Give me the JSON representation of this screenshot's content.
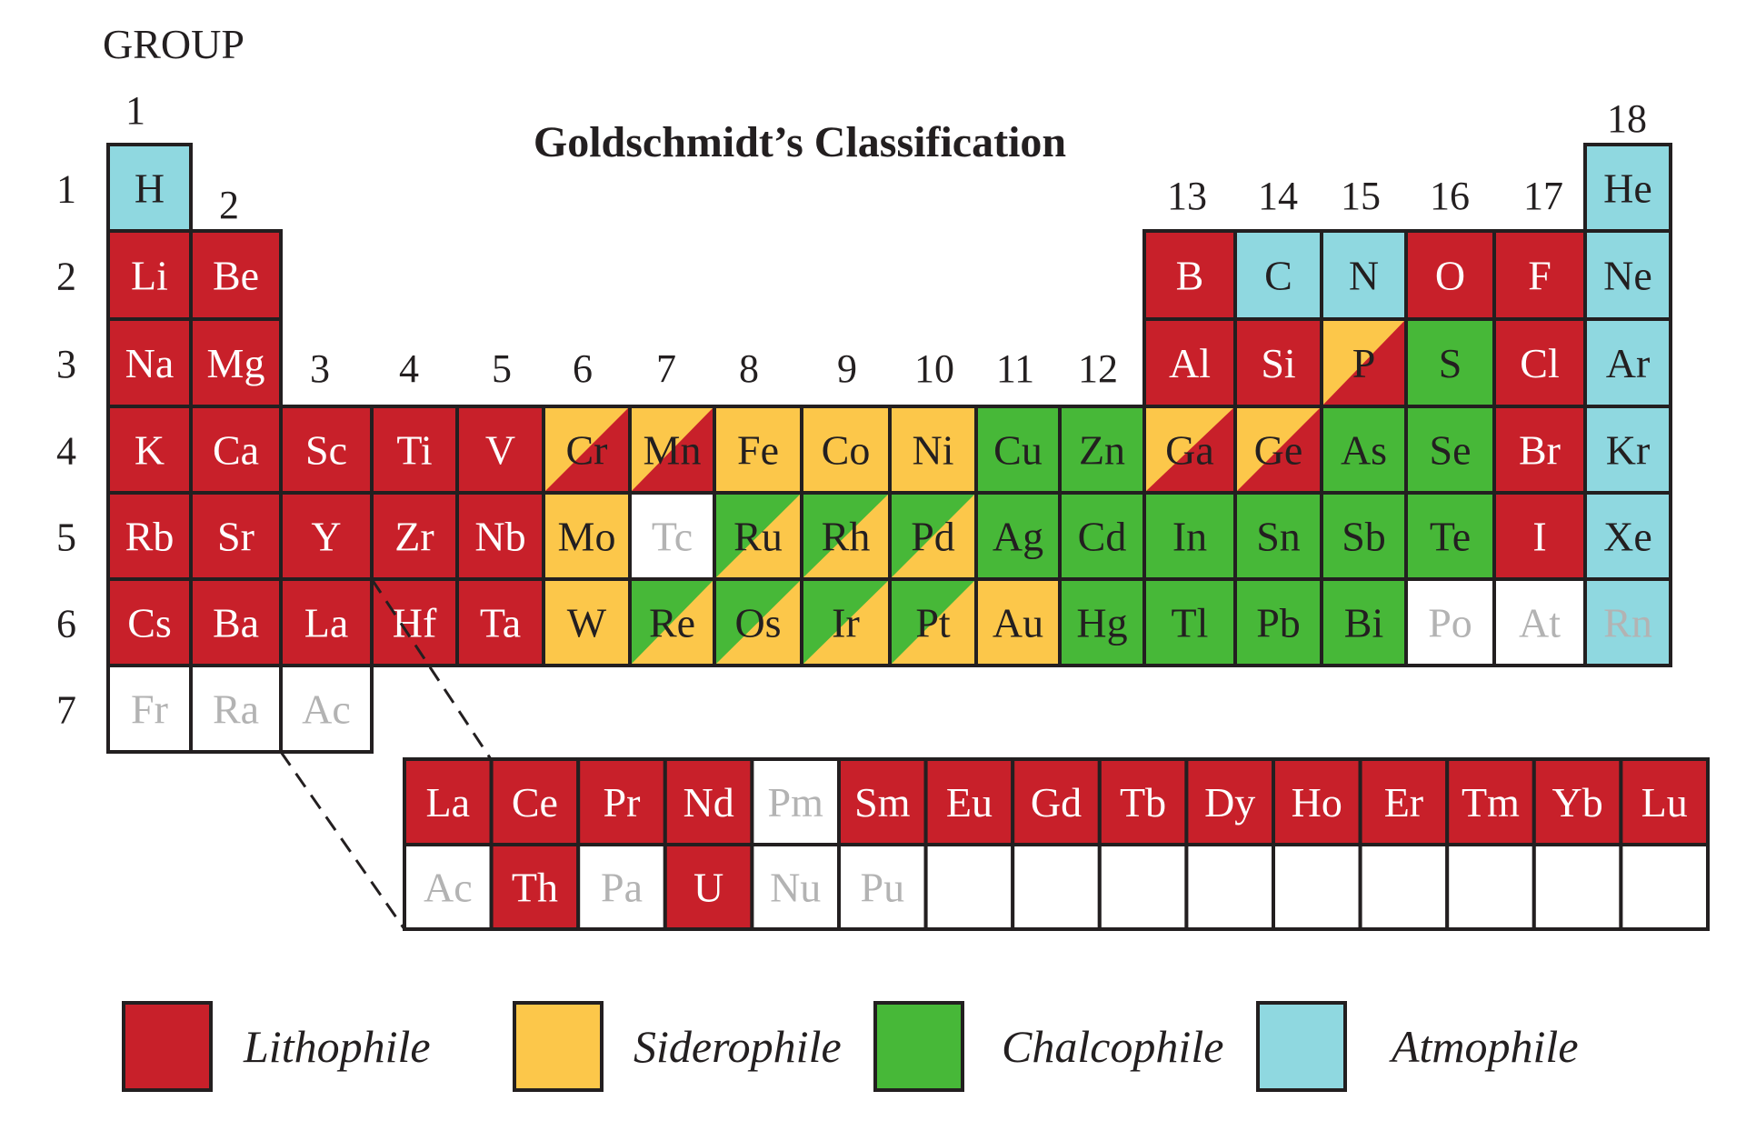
{
  "title": "Goldschmidt’s Classification",
  "group_word": "GROUP",
  "colors": {
    "L": "#c8202a",
    "S": "#fcc74a",
    "C": "#47b838",
    "A": "#8fd8e0",
    "N": "#ffffff"
  },
  "text_colors": {
    "L": "#ffffff",
    "S": "#231f20",
    "C": "#231f20",
    "A": "#231f20",
    "N": "#b3b3b3"
  },
  "group_numbers": [
    "1",
    "2",
    "3",
    "4",
    "5",
    "6",
    "7",
    "8",
    "9",
    "10",
    "11",
    "12",
    "13",
    "14",
    "15",
    "16",
    "17",
    "18"
  ],
  "period_numbers": [
    "1",
    "2",
    "3",
    "4",
    "5",
    "6",
    "7"
  ],
  "legend": [
    {
      "label": "Lithophile",
      "class": "L"
    },
    {
      "label": "Siderophile",
      "class": "S"
    },
    {
      "label": "Chalcophile",
      "class": "C"
    },
    {
      "label": "Atmophile",
      "class": "A"
    }
  ],
  "main_table": [
    {
      "period": 1,
      "group": 1,
      "symbol": "H",
      "class": "A"
    },
    {
      "period": 1,
      "group": 18,
      "symbol": "He",
      "class": "A"
    },
    {
      "period": 2,
      "group": 1,
      "symbol": "Li",
      "class": "L"
    },
    {
      "period": 2,
      "group": 2,
      "symbol": "Be",
      "class": "L"
    },
    {
      "period": 2,
      "group": 13,
      "symbol": "B",
      "class": "L"
    },
    {
      "period": 2,
      "group": 14,
      "symbol": "C",
      "class": "A"
    },
    {
      "period": 2,
      "group": 15,
      "symbol": "N",
      "class": "A"
    },
    {
      "period": 2,
      "group": 16,
      "symbol": "O",
      "class": "L"
    },
    {
      "period": 2,
      "group": 17,
      "symbol": "F",
      "class": "L"
    },
    {
      "period": 2,
      "group": 18,
      "symbol": "Ne",
      "class": "A"
    },
    {
      "period": 3,
      "group": 1,
      "symbol": "Na",
      "class": "L"
    },
    {
      "period": 3,
      "group": 2,
      "symbol": "Mg",
      "class": "L"
    },
    {
      "period": 3,
      "group": 13,
      "symbol": "Al",
      "class": "L"
    },
    {
      "period": 3,
      "group": 14,
      "symbol": "Si",
      "class": "L"
    },
    {
      "period": 3,
      "group": 15,
      "symbol": "P",
      "class": "S",
      "class2": "L"
    },
    {
      "period": 3,
      "group": 16,
      "symbol": "S",
      "class": "C"
    },
    {
      "period": 3,
      "group": 17,
      "symbol": "Cl",
      "class": "L"
    },
    {
      "period": 3,
      "group": 18,
      "symbol": "Ar",
      "class": "A"
    },
    {
      "period": 4,
      "group": 1,
      "symbol": "K",
      "class": "L"
    },
    {
      "period": 4,
      "group": 2,
      "symbol": "Ca",
      "class": "L"
    },
    {
      "period": 4,
      "group": 3,
      "symbol": "Sc",
      "class": "L"
    },
    {
      "period": 4,
      "group": 4,
      "symbol": "Ti",
      "class": "L"
    },
    {
      "period": 4,
      "group": 5,
      "symbol": "V",
      "class": "L"
    },
    {
      "period": 4,
      "group": 6,
      "symbol": "Cr",
      "class": "S",
      "class2": "L"
    },
    {
      "period": 4,
      "group": 7,
      "symbol": "Mn",
      "class": "S",
      "class2": "L"
    },
    {
      "period": 4,
      "group": 8,
      "symbol": "Fe",
      "class": "S"
    },
    {
      "period": 4,
      "group": 9,
      "symbol": "Co",
      "class": "S"
    },
    {
      "period": 4,
      "group": 10,
      "symbol": "Ni",
      "class": "S"
    },
    {
      "period": 4,
      "group": 11,
      "symbol": "Cu",
      "class": "C"
    },
    {
      "period": 4,
      "group": 12,
      "symbol": "Zn",
      "class": "C"
    },
    {
      "period": 4,
      "group": 13,
      "symbol": "Ga",
      "class": "S",
      "class2": "L"
    },
    {
      "period": 4,
      "group": 14,
      "symbol": "Ge",
      "class": "S",
      "class2": "L"
    },
    {
      "period": 4,
      "group": 15,
      "symbol": "As",
      "class": "C"
    },
    {
      "period": 4,
      "group": 16,
      "symbol": "Se",
      "class": "C"
    },
    {
      "period": 4,
      "group": 17,
      "symbol": "Br",
      "class": "L"
    },
    {
      "period": 4,
      "group": 18,
      "symbol": "Kr",
      "class": "A"
    },
    {
      "period": 5,
      "group": 1,
      "symbol": "Rb",
      "class": "L"
    },
    {
      "period": 5,
      "group": 2,
      "symbol": "Sr",
      "class": "L"
    },
    {
      "period": 5,
      "group": 3,
      "symbol": "Y",
      "class": "L"
    },
    {
      "period": 5,
      "group": 4,
      "symbol": "Zr",
      "class": "L"
    },
    {
      "period": 5,
      "group": 5,
      "symbol": "Nb",
      "class": "L"
    },
    {
      "period": 5,
      "group": 6,
      "symbol": "Mo",
      "class": "S"
    },
    {
      "period": 5,
      "group": 7,
      "symbol": "Tc",
      "class": "N"
    },
    {
      "period": 5,
      "group": 8,
      "symbol": "Ru",
      "class": "C",
      "class2": "S"
    },
    {
      "period": 5,
      "group": 9,
      "symbol": "Rh",
      "class": "C",
      "class2": "S"
    },
    {
      "period": 5,
      "group": 10,
      "symbol": "Pd",
      "class": "C",
      "class2": "S"
    },
    {
      "period": 5,
      "group": 11,
      "symbol": "Ag",
      "class": "C"
    },
    {
      "period": 5,
      "group": 12,
      "symbol": "Cd",
      "class": "C"
    },
    {
      "period": 5,
      "group": 13,
      "symbol": "In",
      "class": "C"
    },
    {
      "period": 5,
      "group": 14,
      "symbol": "Sn",
      "class": "C"
    },
    {
      "period": 5,
      "group": 15,
      "symbol": "Sb",
      "class": "C"
    },
    {
      "period": 5,
      "group": 16,
      "symbol": "Te",
      "class": "C"
    },
    {
      "period": 5,
      "group": 17,
      "symbol": "I",
      "class": "L"
    },
    {
      "period": 5,
      "group": 18,
      "symbol": "Xe",
      "class": "A"
    },
    {
      "period": 6,
      "group": 1,
      "symbol": "Cs",
      "class": "L"
    },
    {
      "period": 6,
      "group": 2,
      "symbol": "Ba",
      "class": "L"
    },
    {
      "period": 6,
      "group": 3,
      "symbol": "La",
      "class": "L"
    },
    {
      "period": 6,
      "group": 4,
      "symbol": "Hf",
      "class": "L"
    },
    {
      "period": 6,
      "group": 5,
      "symbol": "Ta",
      "class": "L"
    },
    {
      "period": 6,
      "group": 6,
      "symbol": "W",
      "class": "S"
    },
    {
      "period": 6,
      "group": 7,
      "symbol": "Re",
      "class": "C",
      "class2": "S"
    },
    {
      "period": 6,
      "group": 8,
      "symbol": "Os",
      "class": "C",
      "class2": "S"
    },
    {
      "period": 6,
      "group": 9,
      "symbol": "Ir",
      "class": "C",
      "class2": "S"
    },
    {
      "period": 6,
      "group": 10,
      "symbol": "Pt",
      "class": "C",
      "class2": "S"
    },
    {
      "period": 6,
      "group": 11,
      "symbol": "Au",
      "class": "S"
    },
    {
      "period": 6,
      "group": 12,
      "symbol": "Hg",
      "class": "C"
    },
    {
      "period": 6,
      "group": 13,
      "symbol": "Tl",
      "class": "C"
    },
    {
      "period": 6,
      "group": 14,
      "symbol": "Pb",
      "class": "C"
    },
    {
      "period": 6,
      "group": 15,
      "symbol": "Bi",
      "class": "C"
    },
    {
      "period": 6,
      "group": 16,
      "symbol": "Po",
      "class": "N"
    },
    {
      "period": 6,
      "group": 17,
      "symbol": "At",
      "class": "N"
    },
    {
      "period": 6,
      "group": 18,
      "symbol": "Rn",
      "class": "A",
      "text": "N"
    },
    {
      "period": 7,
      "group": 1,
      "symbol": "Fr",
      "class": "N"
    },
    {
      "period": 7,
      "group": 2,
      "symbol": "Ra",
      "class": "N"
    },
    {
      "period": 7,
      "group": 3,
      "symbol": "Ac",
      "class": "N"
    }
  ],
  "lanthanides": [
    {
      "symbol": "La",
      "class": "L"
    },
    {
      "symbol": "Ce",
      "class": "L"
    },
    {
      "symbol": "Pr",
      "class": "L"
    },
    {
      "symbol": "Nd",
      "class": "L"
    },
    {
      "symbol": "Pm",
      "class": "N"
    },
    {
      "symbol": "Sm",
      "class": "L"
    },
    {
      "symbol": "Eu",
      "class": "L"
    },
    {
      "symbol": "Gd",
      "class": "L"
    },
    {
      "symbol": "Tb",
      "class": "L"
    },
    {
      "symbol": "Dy",
      "class": "L"
    },
    {
      "symbol": "Ho",
      "class": "L"
    },
    {
      "symbol": "Er",
      "class": "L"
    },
    {
      "symbol": "Tm",
      "class": "L"
    },
    {
      "symbol": "Yb",
      "class": "L"
    },
    {
      "symbol": "Lu",
      "class": "L"
    }
  ],
  "actinides": [
    {
      "symbol": "Ac",
      "class": "N"
    },
    {
      "symbol": "Th",
      "class": "L"
    },
    {
      "symbol": "Pa",
      "class": "N"
    },
    {
      "symbol": "U",
      "class": "L"
    },
    {
      "symbol": "Nu",
      "class": "N"
    },
    {
      "symbol": "Pu",
      "class": "N"
    },
    {
      "symbol": "",
      "class": "N"
    },
    {
      "symbol": "",
      "class": "N"
    },
    {
      "symbol": "",
      "class": "N"
    },
    {
      "symbol": "",
      "class": "N"
    },
    {
      "symbol": "",
      "class": "N"
    },
    {
      "symbol": "",
      "class": "N"
    },
    {
      "symbol": "",
      "class": "N"
    },
    {
      "symbol": "",
      "class": "N"
    },
    {
      "symbol": "",
      "class": "N"
    }
  ]
}
